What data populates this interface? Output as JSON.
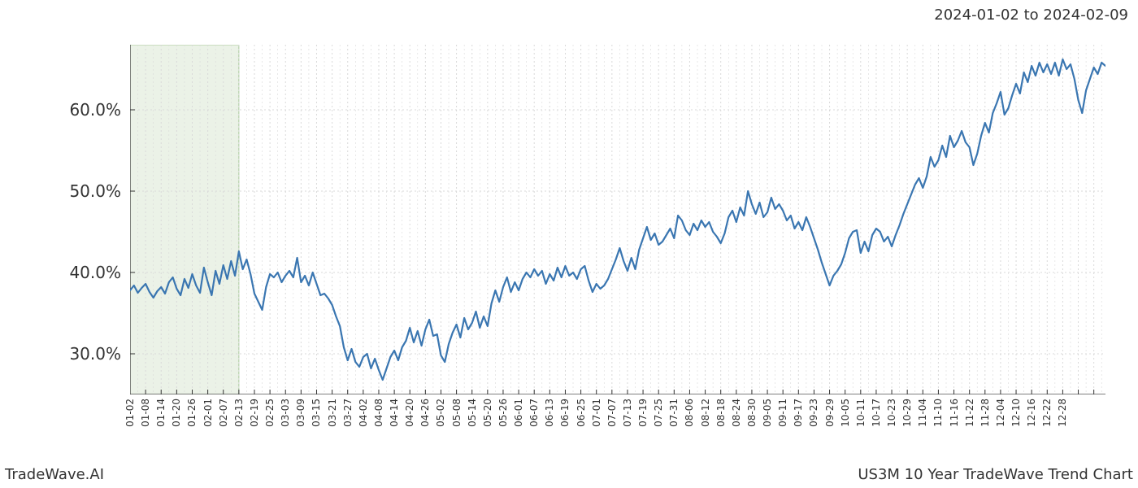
{
  "header": {
    "date_range": "2024-01-02 to 2024-02-09"
  },
  "footer": {
    "left": "TradeWave.AI",
    "right": "US3M 10 Year TradeWave Trend Chart"
  },
  "chart": {
    "type": "line",
    "background_color": "#ffffff",
    "grid_color": "#d9d9d9",
    "grid_dash": "2,3",
    "axis_color": "#333333",
    "label_fontsize": 20,
    "tick_fontsize": 12,
    "ylim": [
      25,
      68
    ],
    "yticks": [
      30,
      40,
      50,
      60
    ],
    "ytick_labels": [
      "30.0%",
      "40.0%",
      "50.0%",
      "60.0%"
    ],
    "x_count": 252,
    "x_tick_interval": 4,
    "x_tick_labels": [
      "01-02",
      "01-08",
      "01-14",
      "01-20",
      "01-26",
      "02-01",
      "02-07",
      "02-13",
      "02-19",
      "02-25",
      "03-03",
      "03-09",
      "03-15",
      "03-21",
      "03-27",
      "04-02",
      "04-08",
      "04-14",
      "04-20",
      "04-26",
      "05-02",
      "05-08",
      "05-14",
      "05-20",
      "05-26",
      "06-01",
      "06-07",
      "06-13",
      "06-19",
      "06-25",
      "07-01",
      "07-07",
      "07-13",
      "07-19",
      "07-25",
      "07-31",
      "08-06",
      "08-12",
      "08-18",
      "08-24",
      "08-30",
      "09-05",
      "09-11",
      "09-17",
      "09-23",
      "09-29",
      "10-05",
      "10-11",
      "10-17",
      "10-23",
      "10-29",
      "11-04",
      "11-10",
      "11-16",
      "11-22",
      "11-28",
      "12-04",
      "12-10",
      "12-16",
      "12-22",
      "12-28"
    ],
    "highlight": {
      "start_index": 0,
      "end_index": 28,
      "fill": "#dbe8d3",
      "stroke": "#a8c99a",
      "opacity": 0.55
    },
    "series": {
      "color": "#3a76b1",
      "width": 2.2,
      "values": [
        37.8,
        38.4,
        37.5,
        38.1,
        38.6,
        37.6,
        36.9,
        37.7,
        38.2,
        37.4,
        38.8,
        39.4,
        38.0,
        37.2,
        39.2,
        38.1,
        39.8,
        38.4,
        37.5,
        40.6,
        38.8,
        37.2,
        40.2,
        38.6,
        40.9,
        39.2,
        41.4,
        39.6,
        42.6,
        40.4,
        41.6,
        39.8,
        37.4,
        36.4,
        35.4,
        38.2,
        39.8,
        39.4,
        40.0,
        38.8,
        39.6,
        40.2,
        39.4,
        41.8,
        38.8,
        39.6,
        38.4,
        40.0,
        38.6,
        37.2,
        37.4,
        36.8,
        36.0,
        34.6,
        33.4,
        30.8,
        29.2,
        30.6,
        29.0,
        28.4,
        29.6,
        30.0,
        28.2,
        29.4,
        28.0,
        26.8,
        28.2,
        29.6,
        30.4,
        29.2,
        30.8,
        31.6,
        33.2,
        31.4,
        32.8,
        31.0,
        33.0,
        34.2,
        32.2,
        32.4,
        29.8,
        29.0,
        31.2,
        32.6,
        33.6,
        32.0,
        34.4,
        33.0,
        33.8,
        35.2,
        33.2,
        34.6,
        33.4,
        36.2,
        37.8,
        36.4,
        38.2,
        39.4,
        37.6,
        38.8,
        37.8,
        39.2,
        40.0,
        39.4,
        40.4,
        39.6,
        40.2,
        38.6,
        39.8,
        39.0,
        40.6,
        39.4,
        40.8,
        39.6,
        40.0,
        39.2,
        40.4,
        40.8,
        39.0,
        37.6,
        38.6,
        38.0,
        38.4,
        39.2,
        40.4,
        41.6,
        43.0,
        41.4,
        40.2,
        41.8,
        40.4,
        42.8,
        44.2,
        45.6,
        44.0,
        44.8,
        43.4,
        43.8,
        44.6,
        45.4,
        44.2,
        47.0,
        46.4,
        45.2,
        44.6,
        46.0,
        45.2,
        46.4,
        45.6,
        46.2,
        45.0,
        44.4,
        43.6,
        44.8,
        46.8,
        47.6,
        46.2,
        48.0,
        47.0,
        50.0,
        48.4,
        47.2,
        48.6,
        46.8,
        47.4,
        49.2,
        47.8,
        48.4,
        47.6,
        46.4,
        47.0,
        45.4,
        46.2,
        45.2,
        46.8,
        45.6,
        44.2,
        42.8,
        41.2,
        39.8,
        38.4,
        39.6,
        40.2,
        41.0,
        42.4,
        44.2,
        45.0,
        45.2,
        42.4,
        43.8,
        42.6,
        44.6,
        45.4,
        45.0,
        43.8,
        44.4,
        43.2,
        44.6,
        45.8,
        47.2,
        48.4,
        49.6,
        50.8,
        51.6,
        50.4,
        51.8,
        54.2,
        53.0,
        53.8,
        55.6,
        54.2,
        56.8,
        55.4,
        56.2,
        57.4,
        56.0,
        55.4,
        53.2,
        54.6,
        56.8,
        58.4,
        57.2,
        59.6,
        60.8,
        62.2,
        59.4,
        60.2,
        61.8,
        63.2,
        62.0,
        64.6,
        63.4,
        65.4,
        64.2,
        65.8,
        64.6,
        65.6,
        64.4,
        65.8,
        64.2,
        66.2,
        65.0,
        65.6,
        63.8,
        61.2,
        59.6,
        62.4,
        63.8,
        65.2,
        64.4,
        65.8,
        65.4
      ]
    }
  }
}
